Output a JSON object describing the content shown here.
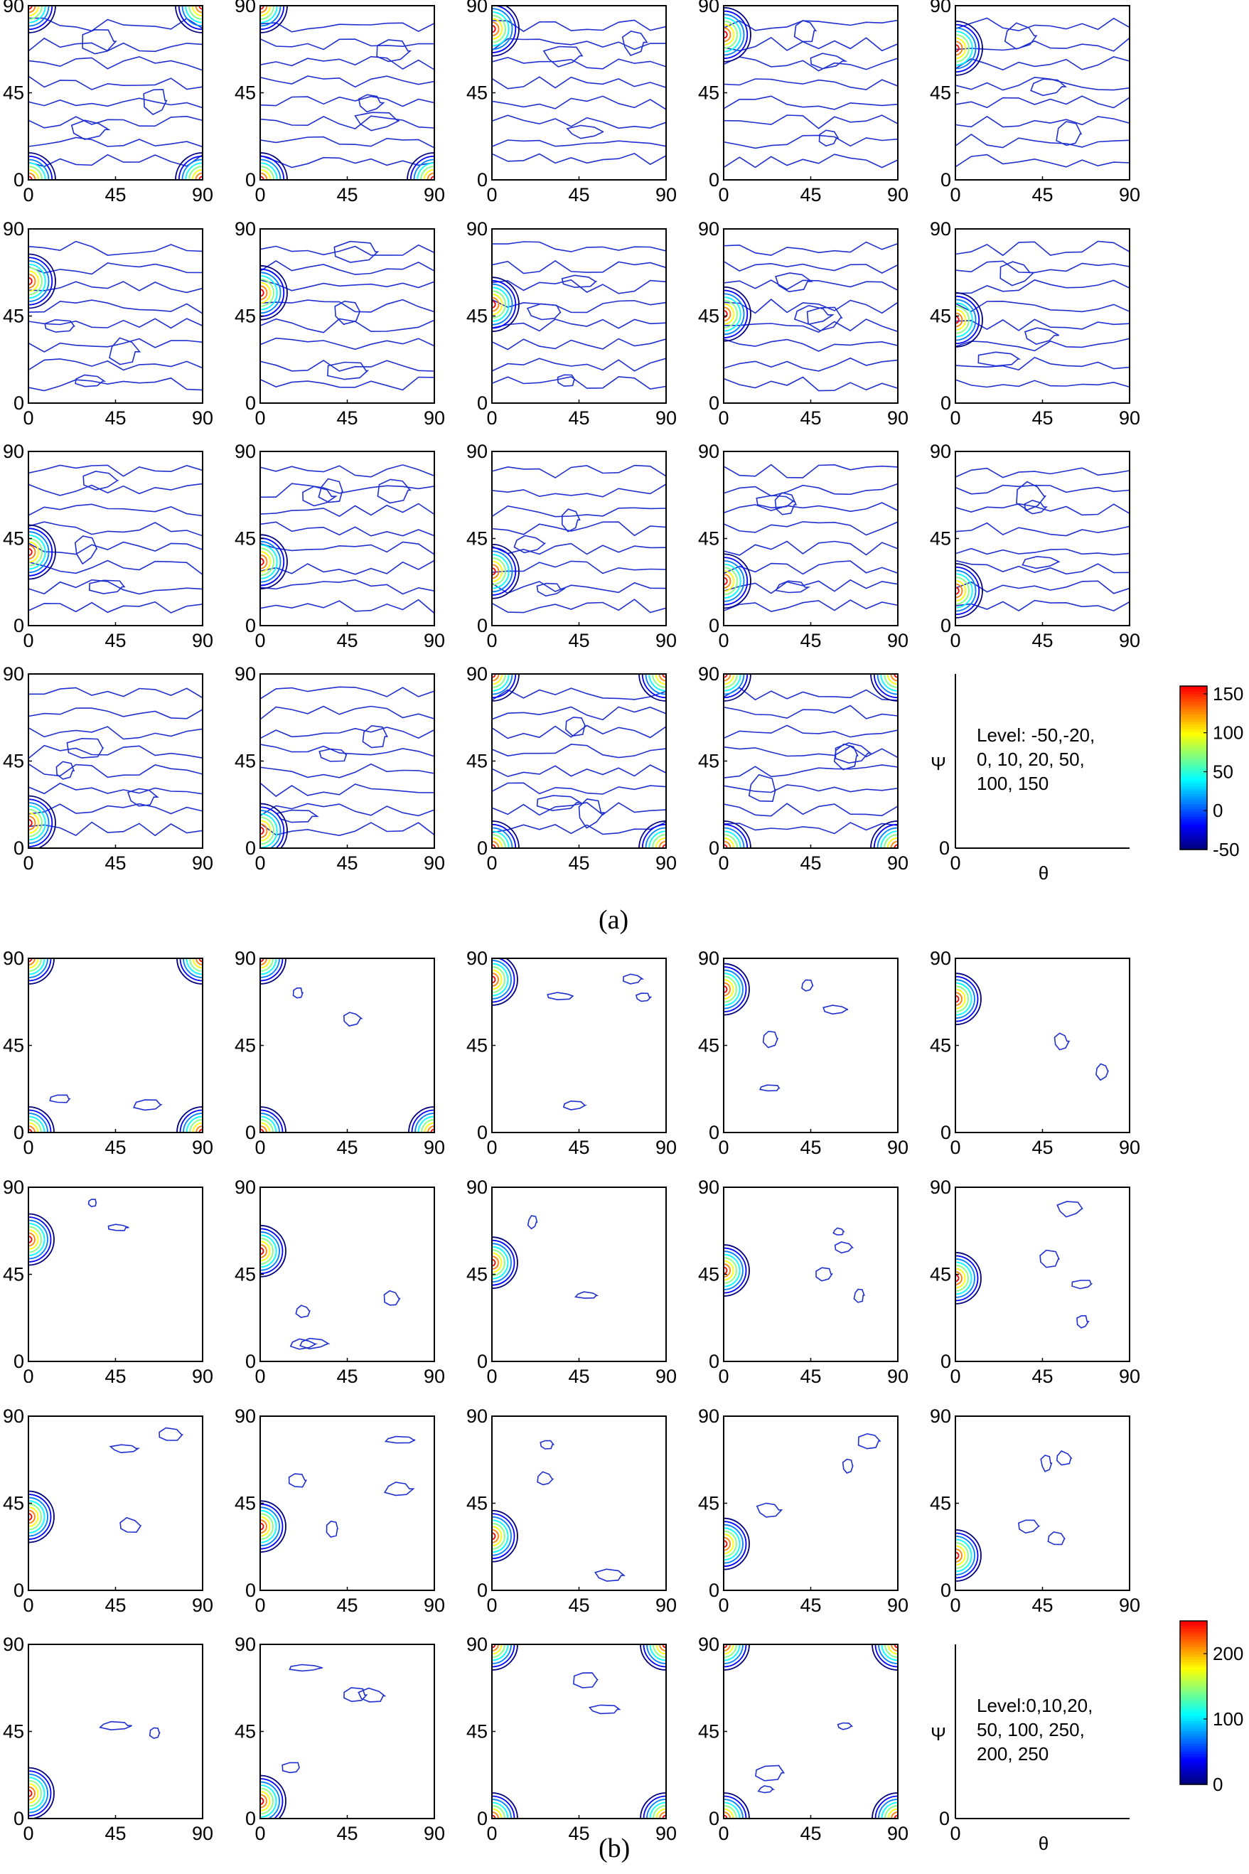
{
  "figure": {
    "label_a": "(a)",
    "label_b": "(b)"
  },
  "chart_data": [
    {
      "type": "contour",
      "panel": "a",
      "rows": 4,
      "cols": 5,
      "subplots": 19,
      "xlabel": "",
      "ylabel": "",
      "x_ticks": [
        "0",
        "45",
        "90"
      ],
      "y_ticks": [
        "0",
        "45",
        "90"
      ],
      "xlim": [
        0,
        90
      ],
      "ylim": [
        0,
        90
      ],
      "colormap": "jet",
      "colorbar": {
        "ticks": [
          "150",
          "100",
          "50",
          "0",
          "-50"
        ],
        "range": [
          -50,
          160
        ]
      },
      "legend_box": {
        "ylabel": "Ψ",
        "xlabel": "θ",
        "origin_y": "0",
        "origin_x": "0",
        "text_lines": [
          "Level: -50,-20,",
          "0, 10, 20, 50,",
          "100, 150"
        ]
      },
      "peak_locations": [
        {
          "subplot": 1,
          "corners": [
            "top-left",
            "top-right",
            "bottom-left",
            "bottom-right"
          ]
        },
        {
          "subplot": 2,
          "corners": [
            "top-left",
            "bottom-left",
            "bottom-right"
          ]
        },
        {
          "subplot": 3,
          "theta": 0,
          "psi": 78
        },
        {
          "subplot": 4,
          "theta": 0,
          "psi": 75
        },
        {
          "subplot": 5,
          "theta": 0,
          "psi": 68
        },
        {
          "subplot": 6,
          "theta": 0,
          "psi": 63
        },
        {
          "subplot": 7,
          "theta": 0,
          "psi": 57
        },
        {
          "subplot": 8,
          "theta": 0,
          "psi": 51
        },
        {
          "subplot": 9,
          "theta": 0,
          "psi": 46
        },
        {
          "subplot": 10,
          "theta": 0,
          "psi": 43
        },
        {
          "subplot": 11,
          "theta": 0,
          "psi": 38
        },
        {
          "subplot": 12,
          "theta": 0,
          "psi": 33
        },
        {
          "subplot": 13,
          "theta": 0,
          "psi": 28
        },
        {
          "subplot": 14,
          "theta": 0,
          "psi": 23
        },
        {
          "subplot": 15,
          "theta": 0,
          "psi": 18
        },
        {
          "subplot": 16,
          "theta": 0,
          "psi": 13
        },
        {
          "subplot": 17,
          "theta": 0,
          "psi": 9
        },
        {
          "subplot": 18,
          "corners": [
            "top-left",
            "top-right",
            "bottom-left",
            "bottom-right"
          ]
        },
        {
          "subplot": 19,
          "corners": [
            "top-left",
            "top-right",
            "bottom-left",
            "bottom-right"
          ]
        }
      ]
    },
    {
      "type": "contour",
      "panel": "b",
      "rows": 4,
      "cols": 5,
      "subplots": 19,
      "xlabel": "",
      "ylabel": "",
      "x_ticks": [
        "0",
        "45",
        "90"
      ],
      "y_ticks": [
        "0",
        "45",
        "90"
      ],
      "xlim": [
        0,
        90
      ],
      "ylim": [
        0,
        90
      ],
      "colormap": "jet",
      "colorbar": {
        "ticks": [
          "200",
          "100",
          "0"
        ],
        "range": [
          0,
          250
        ]
      },
      "legend_box": {
        "ylabel": "Ψ",
        "xlabel": "θ",
        "origin_y": "0",
        "origin_x": "0",
        "text_lines": [
          "Level:0,10,20,",
          "50, 100, 250,",
          "200, 250"
        ]
      },
      "peak_locations": [
        {
          "subplot": 1,
          "corners": [
            "top-left",
            "top-right",
            "bottom-left",
            "bottom-right"
          ]
        },
        {
          "subplot": 2,
          "corners": [
            "top-left",
            "bottom-left",
            "bottom-right"
          ]
        },
        {
          "subplot": 3,
          "theta": 0,
          "psi": 79
        },
        {
          "subplot": 4,
          "theta": 0,
          "psi": 74
        },
        {
          "subplot": 5,
          "theta": 0,
          "psi": 69
        },
        {
          "subplot": 6,
          "theta": 0,
          "psi": 63
        },
        {
          "subplot": 7,
          "theta": 0,
          "psi": 57
        },
        {
          "subplot": 8,
          "theta": 0,
          "psi": 51
        },
        {
          "subplot": 9,
          "theta": 0,
          "psi": 47
        },
        {
          "subplot": 10,
          "theta": 0,
          "psi": 43
        },
        {
          "subplot": 11,
          "theta": 0,
          "psi": 38
        },
        {
          "subplot": 12,
          "theta": 0,
          "psi": 33
        },
        {
          "subplot": 13,
          "theta": 0,
          "psi": 28
        },
        {
          "subplot": 14,
          "theta": 0,
          "psi": 24
        },
        {
          "subplot": 15,
          "theta": 0,
          "psi": 18
        },
        {
          "subplot": 16,
          "theta": 0,
          "psi": 13
        },
        {
          "subplot": 17,
          "theta": 0,
          "psi": 9
        },
        {
          "subplot": 18,
          "corners": [
            "top-left",
            "top-right",
            "bottom-left",
            "bottom-right"
          ]
        },
        {
          "subplot": 19,
          "corners": [
            "top-left",
            "top-right",
            "bottom-left",
            "bottom-right"
          ]
        }
      ]
    }
  ]
}
